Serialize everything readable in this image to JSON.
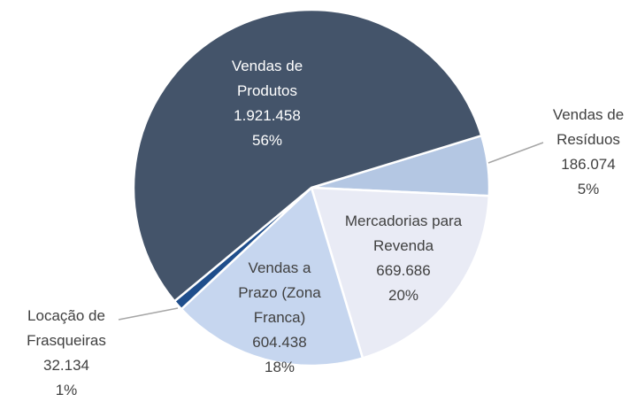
{
  "chart_data": {
    "type": "pie",
    "categories": [
      "Vendas de Resíduos",
      "Mercadorias para Revenda",
      "Vendas a Prazo (Zona Franca)",
      "Locação de Frasqueiras",
      "Vendas de Produtos"
    ],
    "values": [
      186074,
      669686,
      604438,
      32134,
      1921458
    ],
    "value_labels": [
      "186.074",
      "669.686",
      "604.438",
      "32.134",
      "1.921.458"
    ],
    "percent_labels": [
      "5%",
      "20%",
      "18%",
      "1%",
      "56%"
    ],
    "colors": [
      "#b4c7e3",
      "#e9ebf5",
      "#c6d6ef",
      "#1f4e8c",
      "#44546a"
    ]
  }
}
